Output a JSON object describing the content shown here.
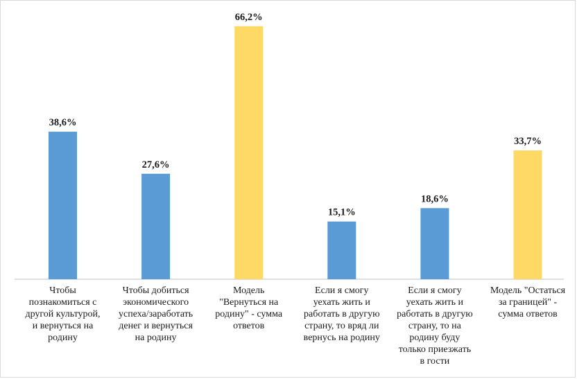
{
  "chart_data": {
    "type": "bar",
    "categories": [
      "Чтобы познакомиться с другой культурой, и вернуться на родину",
      "Чтобы добиться экономического успеха/заработать денег и вернуться на родину",
      "Модель \"Вернуться на родину\" - сумма ответов",
      "Если я смогу уехать жить и работать в другую страну, то вряд ли вернусь на родину",
      "Если я смогу уехать жить и работать в другую страну, то на родину буду только приезжать в гости",
      "Модель \"Остаться за границей\" - сумма ответов"
    ],
    "category_lines": [
      "Чтобы\nпознакомиться с\nдругой культурой,\nи вернуться на\nродину",
      "Чтобы добиться\nэкономического\nуспеха/заработать\nденег и вернуться\nна родину",
      "Модель\n\"Вернуться на\nродину\" - сумма\nответов",
      "Если я смогу\nуехать жить и\nработать в другую\nстрану, то вряд ли\nвернусь на родину",
      "Если я смогу\nуехать жить и\nработать в другую\nстрану, то на\nродину буду\nтолько приезжать\nв гости",
      "Модель \"Остаться\nза границей\" -\nсумма ответов"
    ],
    "values": [
      38.6,
      27.6,
      66.2,
      15.1,
      18.6,
      33.7
    ],
    "value_labels": [
      "38,6%",
      "27,6%",
      "66,2%",
      "15,1%",
      "18,6%",
      "33,7%"
    ],
    "bar_colors": [
      "#5b9bd5",
      "#5b9bd5",
      "#ffd966",
      "#5b9bd5",
      "#5b9bd5",
      "#ffd966"
    ],
    "ylim": [
      0,
      70
    ],
    "grid": false,
    "legend": "none",
    "title": "",
    "xlabel": "",
    "ylabel": ""
  }
}
